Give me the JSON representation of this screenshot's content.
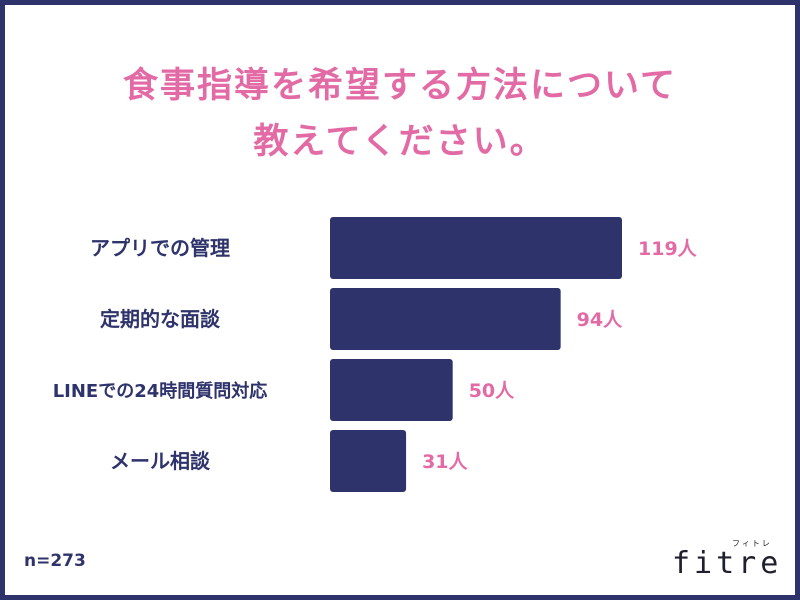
{
  "title_line1": "食事指導を希望する方法について",
  "title_line2": "教えてください。",
  "sample_size": "n=273",
  "logo": {
    "main": "fitre",
    "kana": "フィトレ"
  },
  "colors": {
    "bar": "#2f336b",
    "value": "#e26aa5",
    "label": "#2f336b",
    "title": "#e26aa5",
    "border": "#2f336b"
  },
  "chart_data": {
    "type": "bar",
    "orientation": "horizontal",
    "categories": [
      "アプリでの管理",
      "定期的な面談",
      "LINEでの24時間質問対応",
      "メール相談"
    ],
    "values": [
      119,
      94,
      50,
      31
    ],
    "value_labels": [
      "119人",
      "94人",
      "50人",
      "31人"
    ],
    "unit": "人",
    "grid": false,
    "legend": "none"
  }
}
